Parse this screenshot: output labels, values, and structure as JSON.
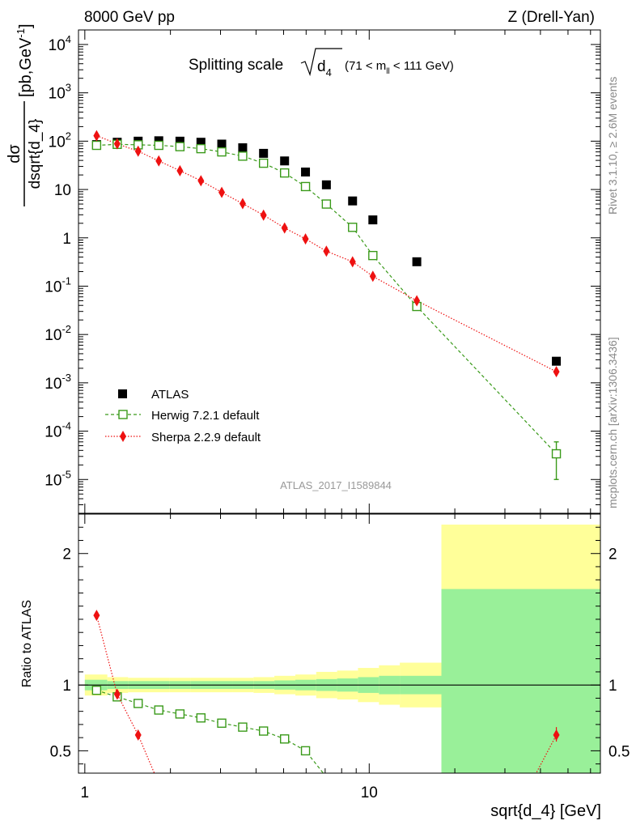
{
  "header": {
    "left": "8000 GeV pp",
    "right": "Z (Drell-Yan)"
  },
  "title": {
    "main": "Splitting scale",
    "var": "d",
    "sub": "4",
    "range": "(71 < m",
    "range_sub": "ll",
    "range_end": " < 111 GeV)"
  },
  "side_labels": {
    "rivet": "Rivet 3.1.10, ≥ 2.6M events",
    "mcplots": "mcplots.cern.ch [arXiv:1306.3436]"
  },
  "watermark": "ATLAS_2017_I1589844",
  "y_label_top": {
    "numer": "dσ",
    "denom": "dsqrt{d_4}",
    "units": "[pb,GeV",
    "units_sup": "-1",
    "units_end": "]"
  },
  "y_label_bottom": "Ratio to ATLAS",
  "x_label": "sqrt{d_4} [GeV]",
  "chart_data": [
    {
      "type": "scatter",
      "panel": "main",
      "scale": "log-log",
      "xlim": [
        0.95,
        65
      ],
      "ylim": [
        2e-06,
        20000
      ],
      "y_ticks": [
        {
          "base": "10",
          "exp": "-5",
          "value": 1e-05
        },
        {
          "base": "10",
          "exp": "-4",
          "value": 0.0001
        },
        {
          "base": "10",
          "exp": "-3",
          "value": 0.001
        },
        {
          "base": "10",
          "exp": "-2",
          "value": 0.01
        },
        {
          "base": "10",
          "exp": "-1",
          "value": 0.1
        },
        {
          "base": "1",
          "exp": "",
          "value": 1
        },
        {
          "base": "10",
          "exp": "",
          "value": 10
        },
        {
          "base": "10",
          "exp": "2",
          "value": 100
        },
        {
          "base": "10",
          "exp": "3",
          "value": 1000
        },
        {
          "base": "10",
          "exp": "4",
          "value": 10000
        }
      ],
      "legend": "left",
      "series": [
        {
          "name": "ATLAS",
          "marker": "filled-square",
          "color": "#000000",
          "x": [
            1.1,
            1.3,
            1.54,
            1.82,
            2.16,
            2.56,
            3.03,
            3.59,
            4.25,
            5.04,
            5.97,
            7.07,
            8.74,
            10.3,
            14.7,
            45.5
          ],
          "y": [
            85,
            95,
            100,
            102,
            100,
            95,
            87,
            73,
            56,
            39,
            23,
            12.5,
            5.8,
            2.35,
            0.32,
            0.0028
          ]
        },
        {
          "name": "Herwig 7.2.1 default",
          "marker": "open-square",
          "line": "dashed",
          "color": "#3a9a1a",
          "x": [
            1.1,
            1.3,
            1.54,
            1.82,
            2.16,
            2.56,
            3.03,
            3.59,
            4.25,
            5.04,
            5.97,
            7.07,
            8.74,
            10.3,
            14.7,
            45.5
          ],
          "y": [
            82,
            86,
            84,
            82,
            77,
            70,
            60,
            49,
            35,
            22,
            11.5,
            5,
            1.65,
            0.43,
            0.038,
            3.4e-05
          ],
          "yerr_last": [
            1e-05,
            6e-05
          ]
        },
        {
          "name": "Sherpa 2.2.9 default",
          "marker": "diamond",
          "line": "dotted",
          "color": "#ee1111",
          "x": [
            1.1,
            1.3,
            1.54,
            1.82,
            2.16,
            2.56,
            3.03,
            3.59,
            4.25,
            5.04,
            5.97,
            7.07,
            8.74,
            10.3,
            14.7,
            45.5
          ],
          "y": [
            130,
            88,
            62,
            39,
            24.5,
            15.2,
            8.7,
            5.1,
            2.95,
            1.6,
            0.95,
            0.53,
            0.32,
            0.16,
            0.05,
            0.0017
          ]
        }
      ]
    },
    {
      "type": "line",
      "panel": "ratio",
      "scale": "log-x",
      "xlim": [
        0.95,
        65
      ],
      "ylim": [
        0.33,
        2.3
      ],
      "x_ticks": [
        {
          "label": "1",
          "value": 1
        },
        {
          "label": "10",
          "value": 10
        }
      ],
      "y_ticks": [
        {
          "label": "0.5",
          "value": 0.5
        },
        {
          "label": "1",
          "value": 1
        },
        {
          "label": "2",
          "value": 2
        }
      ],
      "bin_edges": [
        1.0,
        1.2,
        1.42,
        1.68,
        1.99,
        2.36,
        2.8,
        3.31,
        3.92,
        4.64,
        5.5,
        6.51,
        7.71,
        9.13,
        10.82,
        12.81,
        17.94,
        65
      ],
      "band_yellow": [
        0.92,
        0.94,
        0.945,
        0.945,
        0.945,
        0.945,
        0.945,
        0.945,
        0.94,
        0.93,
        0.92,
        0.9,
        0.89,
        0.87,
        0.85,
        0.83,
        0.33
      ],
      "band_yellow_up": [
        1.08,
        1.06,
        1.055,
        1.055,
        1.055,
        1.055,
        1.055,
        1.055,
        1.06,
        1.07,
        1.08,
        1.1,
        1.11,
        1.13,
        1.15,
        1.17,
        2.22
      ],
      "band_green": [
        0.96,
        0.97,
        0.97,
        0.97,
        0.97,
        0.97,
        0.97,
        0.97,
        0.97,
        0.965,
        0.96,
        0.955,
        0.95,
        0.94,
        0.93,
        0.93,
        0.33
      ],
      "band_green_up": [
        1.04,
        1.03,
        1.03,
        1.03,
        1.03,
        1.03,
        1.03,
        1.03,
        1.03,
        1.035,
        1.04,
        1.045,
        1.05,
        1.06,
        1.07,
        1.07,
        1.73
      ],
      "series": [
        {
          "name": "Herwig 7.2.1 default",
          "color": "#3a9a1a",
          "x": [
            1.1,
            1.3,
            1.54,
            1.82,
            2.16,
            2.56,
            3.03,
            3.59,
            4.25,
            5.04,
            5.97,
            7.07
          ],
          "y": [
            0.96,
            0.91,
            0.86,
            0.81,
            0.78,
            0.75,
            0.71,
            0.68,
            0.65,
            0.59,
            0.5,
            0.3
          ]
        },
        {
          "name": "Sherpa 2.2.9 default",
          "color": "#ee1111",
          "x": [
            1.1,
            1.3,
            1.54,
            1.82,
            38.0,
            45.5
          ],
          "y": [
            1.53,
            0.93,
            0.62,
            0.25,
            0.3,
            0.62
          ],
          "visible_markers": [
            0,
            1,
            2,
            5
          ],
          "yerr_last": [
            0.57,
            0.68
          ]
        }
      ]
    }
  ],
  "colors": {
    "herwig": "#3a9a1a",
    "sherpa": "#ee1111",
    "band_yellow": "#ffff99",
    "band_green": "#99f099",
    "side_text": "#888888"
  }
}
